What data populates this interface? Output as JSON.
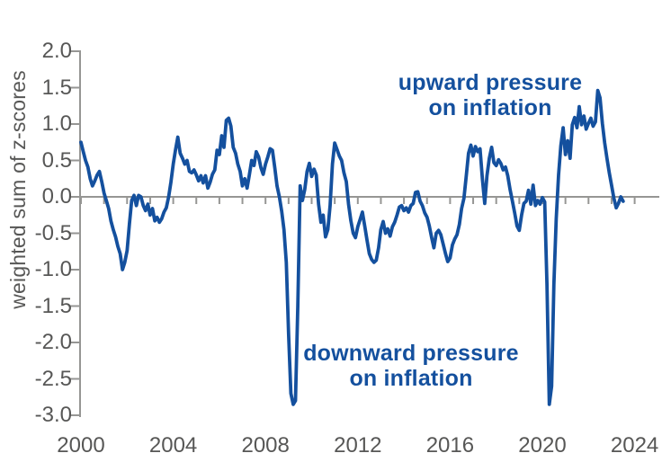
{
  "chart_data": {
    "type": "line",
    "title": "",
    "xlabel": "",
    "ylabel": "weighted sum of z-scores",
    "xlim": [
      2000,
      2025.1
    ],
    "ylim": [
      -3.0,
      2.0
    ],
    "grid": false,
    "legend": "none",
    "x_tick_labels": [
      "2000",
      "2004",
      "2008",
      "2012",
      "2016",
      "2020",
      "2024"
    ],
    "y_tick_labels": [
      "2.0",
      "1.5",
      "1.0",
      "0.5",
      "0.0",
      "-0.5",
      "-1.0",
      "-1.5",
      "-2.0",
      "-2.5",
      "-3.0"
    ],
    "minor_x_ticks_every_years": 1,
    "colors": {
      "line": "#14509e",
      "annotation_text": "#14509e",
      "axis_lines": "#969694",
      "axis_text": "#575756",
      "background": "#ffffff"
    },
    "annotations": [
      {
        "line1": "upward pressure",
        "line2": "on inflation",
        "anchor_year": 2017.7,
        "anchor_value": 1.4
      },
      {
        "line1": "downward pressure",
        "line2": "on inflation",
        "anchor_year": 2014.3,
        "anchor_value": -2.2
      }
    ],
    "series": [
      {
        "name": "weighted sum of z-scores",
        "x_start": 2000.0,
        "x_step": 0.1,
        "values": [
          0.75,
          0.62,
          0.5,
          0.41,
          0.25,
          0.15,
          0.22,
          0.3,
          0.35,
          0.21,
          0.05,
          -0.05,
          -0.16,
          -0.33,
          -0.45,
          -0.55,
          -0.68,
          -0.78,
          -1.0,
          -0.9,
          -0.74,
          -0.37,
          -0.05,
          0.02,
          -0.12,
          0.02,
          0.0,
          -0.12,
          -0.19,
          -0.1,
          -0.25,
          -0.16,
          -0.33,
          -0.28,
          -0.35,
          -0.3,
          -0.21,
          -0.15,
          0.0,
          0.2,
          0.45,
          0.65,
          0.82,
          0.6,
          0.53,
          0.45,
          0.5,
          0.35,
          0.33,
          0.37,
          0.3,
          0.22,
          0.29,
          0.19,
          0.29,
          0.12,
          0.2,
          0.31,
          0.37,
          0.64,
          0.58,
          0.84,
          0.68,
          1.05,
          1.08,
          0.97,
          0.68,
          0.6,
          0.45,
          0.35,
          0.15,
          0.25,
          0.12,
          0.3,
          0.5,
          0.43,
          0.62,
          0.55,
          0.4,
          0.31,
          0.45,
          0.55,
          0.66,
          0.64,
          0.4,
          0.15,
          0.0,
          -0.2,
          -0.45,
          -0.9,
          -1.9,
          -2.7,
          -2.85,
          -2.8,
          -1.5,
          0.15,
          -0.05,
          0.1,
          0.35,
          0.46,
          0.28,
          0.38,
          0.3,
          -0.1,
          -0.35,
          -0.25,
          -0.55,
          -0.45,
          -0.12,
          0.45,
          0.74,
          0.65,
          0.56,
          0.5,
          0.33,
          0.21,
          -0.1,
          -0.33,
          -0.5,
          -0.56,
          -0.41,
          -0.31,
          -0.21,
          -0.4,
          -0.6,
          -0.78,
          -0.86,
          -0.9,
          -0.87,
          -0.7,
          -0.45,
          -0.34,
          -0.5,
          -0.44,
          -0.54,
          -0.41,
          -0.35,
          -0.25,
          -0.14,
          -0.12,
          -0.19,
          -0.15,
          -0.21,
          -0.12,
          -0.09,
          0.06,
          0.07,
          -0.06,
          -0.12,
          -0.22,
          -0.28,
          -0.4,
          -0.56,
          -0.7,
          -0.5,
          -0.46,
          -0.52,
          -0.65,
          -0.78,
          -0.89,
          -0.84,
          -0.66,
          -0.58,
          -0.52,
          -0.38,
          -0.16,
          -0.02,
          0.29,
          0.6,
          0.71,
          0.56,
          0.69,
          0.62,
          0.66,
          0.25,
          -0.09,
          0.29,
          0.53,
          0.68,
          0.47,
          0.43,
          0.51,
          0.46,
          0.37,
          0.41,
          0.29,
          0.1,
          -0.06,
          -0.22,
          -0.4,
          -0.46,
          -0.25,
          -0.09,
          -0.06,
          0.09,
          -0.1,
          0.16,
          -0.12,
          -0.05,
          -0.1,
          -0.01,
          -0.07,
          -1.2,
          -2.85,
          -2.6,
          -1.2,
          -0.3,
          0.3,
          0.7,
          0.95,
          0.58,
          0.77,
          0.53,
          0.99,
          1.09,
          0.95,
          1.24,
          0.99,
          1.11,
          0.93,
          1.01,
          1.08,
          0.97,
          1.03,
          1.46,
          1.36,
          1.01,
          0.74,
          0.53,
          0.33,
          0.16,
          -0.02,
          -0.15,
          -0.09,
          0.0,
          -0.06
        ]
      }
    ]
  }
}
